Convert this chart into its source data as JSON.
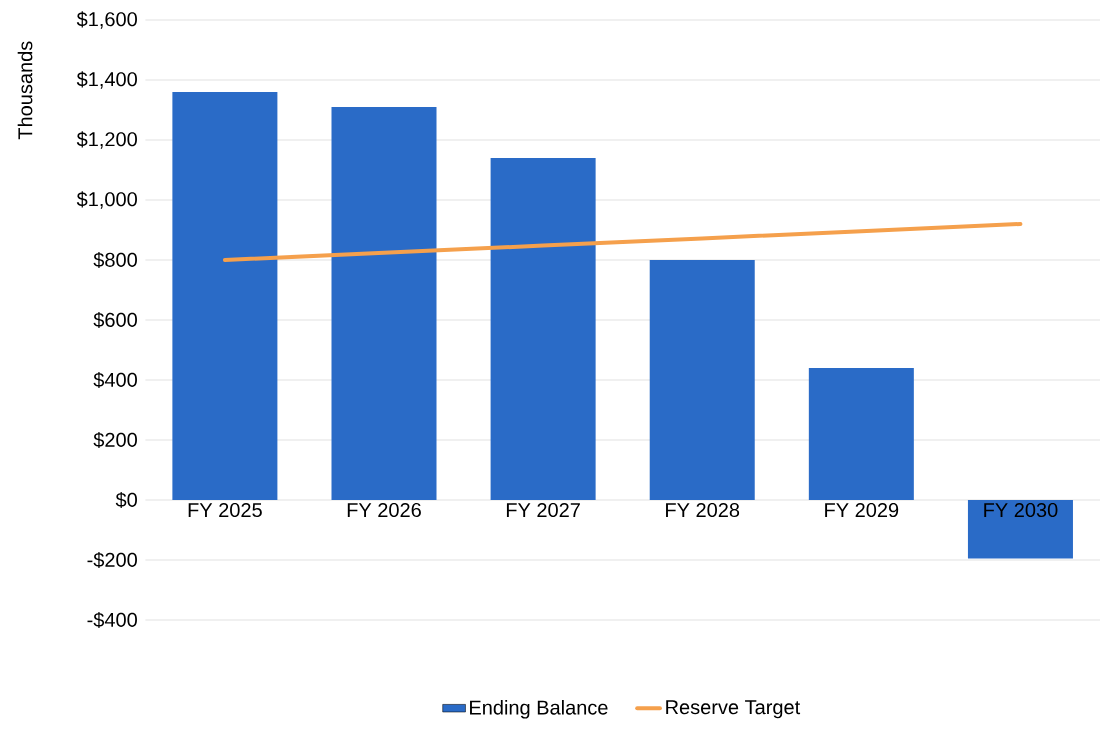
{
  "chart_data": {
    "type": "bar",
    "ylabel": "Thousands",
    "categories": [
      "FY 2025",
      "FY 2026",
      "FY 2027",
      "FY 2028",
      "FY 2029",
      "FY 2030"
    ],
    "series": [
      {
        "name": "Ending Balance",
        "color": "#2a6bc7",
        "values": [
          1360,
          1310,
          1140,
          800,
          440,
          -195
        ]
      },
      {
        "name": "Reserve Target",
        "type": "line",
        "color": "#f5a04c",
        "values": [
          800,
          824,
          848,
          872,
          896,
          920
        ]
      }
    ],
    "ylim": [
      -400,
      1600
    ],
    "yticks": [
      {
        "value": -400,
        "label": "-$400"
      },
      {
        "value": -200,
        "label": "-$200"
      },
      {
        "value": 0,
        "label": "$0"
      },
      {
        "value": 200,
        "label": "$200"
      },
      {
        "value": 400,
        "label": "$400"
      },
      {
        "value": 600,
        "label": "$600"
      },
      {
        "value": 800,
        "label": "$800"
      },
      {
        "value": 1000,
        "label": "$1,000"
      },
      {
        "value": 1200,
        "label": "$1,200"
      },
      {
        "value": 1400,
        "label": "$1,400"
      },
      {
        "value": 1600,
        "label": "$1,600"
      }
    ],
    "grid": "y",
    "legend": "bottom"
  }
}
